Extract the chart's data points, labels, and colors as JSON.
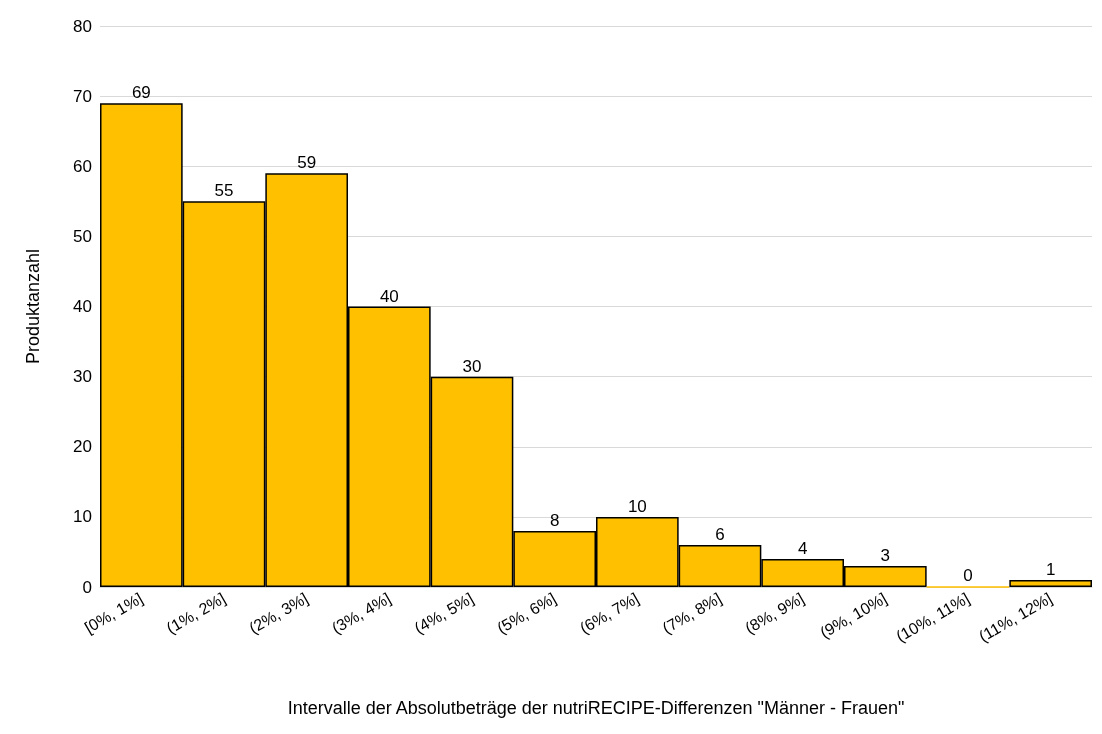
{
  "chart_data": {
    "type": "bar",
    "xlabel": "Intervalle der Absolutbeträge der nutriRECIPE-Differenzen \"Männer - Frauen\"",
    "ylabel": "Produktanzahl",
    "categories": [
      "[0%, 1%]",
      "(1%, 2%]",
      "(2%, 3%]",
      "(3%, 4%]",
      "(4%, 5%]",
      "(5%, 6%]",
      "(6%, 7%]",
      "(7%, 8%]",
      "(8%, 9%]",
      "(9%, 10%]",
      "(10%, 11%]",
      "(11%, 12%]"
    ],
    "values": [
      69,
      55,
      59,
      40,
      30,
      8,
      10,
      6,
      4,
      3,
      0,
      1
    ],
    "color": "#ffc000",
    "ylim": [
      0,
      80
    ],
    "yticks": [
      0,
      10,
      20,
      30,
      40,
      50,
      60,
      70,
      80
    ],
    "grid": "y",
    "data_labels": true
  }
}
